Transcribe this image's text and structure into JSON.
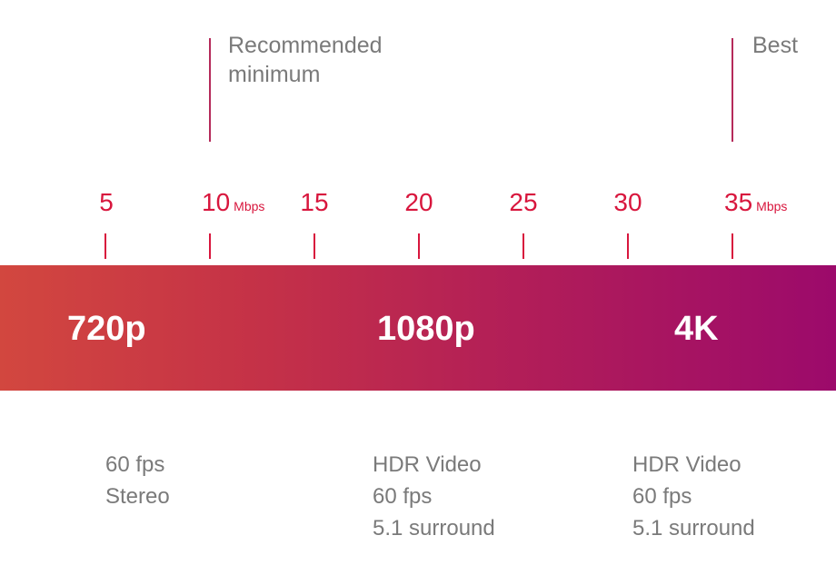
{
  "markers": [
    {
      "label_lines": [
        "Recommended",
        "minimum"
      ]
    },
    {
      "label_lines": [
        "Best"
      ]
    }
  ],
  "scale": {
    "ticks": [
      {
        "value": "5",
        "unit": ""
      },
      {
        "value": "10",
        "unit": "Mbps"
      },
      {
        "value": "15",
        "unit": ""
      },
      {
        "value": "20",
        "unit": ""
      },
      {
        "value": "25",
        "unit": ""
      },
      {
        "value": "30",
        "unit": ""
      },
      {
        "value": "35",
        "unit": "Mbps"
      }
    ]
  },
  "resolutions": [
    "720p",
    "1080p",
    "4K"
  ],
  "features": [
    [
      "60 fps",
      "Stereo"
    ],
    [
      "HDR Video",
      "60 fps",
      "5.1 surround"
    ],
    [
      "HDR Video",
      "60 fps",
      "5.1 surround"
    ]
  ],
  "colors": {
    "tick": "#d8163d",
    "marker": "#b52a5a",
    "bar_start": "#d2473f",
    "bar_end": "#9c0a6b",
    "muted_text": "#7a7a7a"
  }
}
